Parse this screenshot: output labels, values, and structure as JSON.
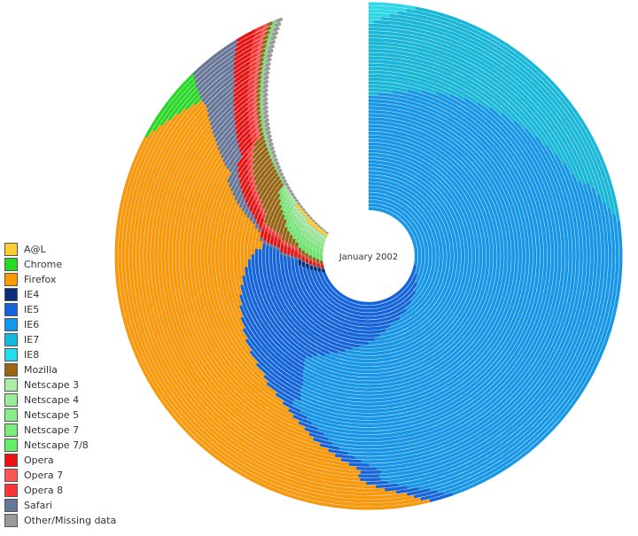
{
  "chart_data": {
    "type": "radial-stacked-bar",
    "current_month": "January 2002",
    "series": [
      {
        "name": "A@L",
        "color": "#ffcc33"
      },
      {
        "name": "Chrome",
        "color": "#22dd22"
      },
      {
        "name": "Firefox",
        "color": "#ff9900"
      },
      {
        "name": "IE4",
        "color": "#0a2e7a"
      },
      {
        "name": "IE5",
        "color": "#1166e0"
      },
      {
        "name": "IE6",
        "color": "#1199ee"
      },
      {
        "name": "IE7",
        "color": "#11bbdd"
      },
      {
        "name": "IE8",
        "color": "#22ddee"
      },
      {
        "name": "Mozilla",
        "color": "#996611"
      },
      {
        "name": "Netscape 3",
        "color": "#aaeeaa"
      },
      {
        "name": "Netscape 4",
        "color": "#99ee99"
      },
      {
        "name": "Netscape 5",
        "color": "#88ee88"
      },
      {
        "name": "Netscape 7",
        "color": "#77ee77"
      },
      {
        "name": "Netscape 7/8",
        "color": "#66ee66"
      },
      {
        "name": "Opera",
        "color": "#ee1111"
      },
      {
        "name": "Opera 7",
        "color": "#ff5555"
      },
      {
        "name": "Opera 8",
        "color": "#ff3333"
      },
      {
        "name": "Safari",
        "color": "#667799"
      },
      {
        "name": "Other/Missing data",
        "color": "#999999"
      }
    ]
  }
}
